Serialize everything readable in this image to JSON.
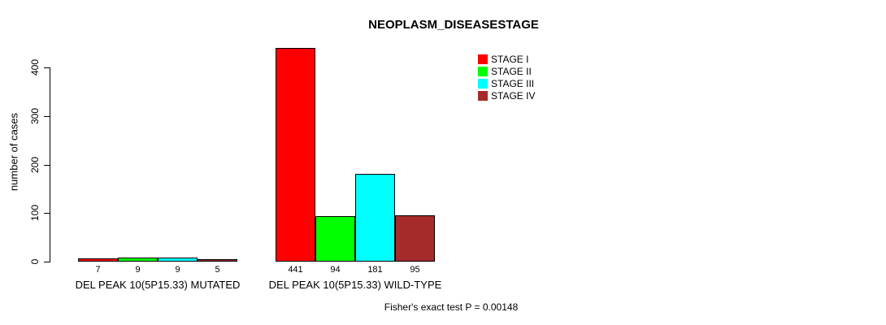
{
  "chart_data": {
    "type": "bar",
    "title": "NEOPLASM_DISEASESTAGE",
    "ylabel": "number of cases",
    "xlabel": "",
    "ylim": [
      0,
      441
    ],
    "yticks": [
      0,
      100,
      200,
      300,
      400
    ],
    "grid": false,
    "legend_position": "top-right",
    "categories": [
      "DEL PEAK 10(5P15.33) MUTATED",
      "DEL PEAK 10(5P15.33) WILD-TYPE"
    ],
    "series": [
      {
        "name": "STAGE I",
        "color": "#ff0000",
        "values": [
          7,
          441
        ]
      },
      {
        "name": "STAGE II",
        "color": "#00ff00",
        "values": [
          9,
          94
        ]
      },
      {
        "name": "STAGE III",
        "color": "#00ffff",
        "values": [
          9,
          181
        ]
      },
      {
        "name": "STAGE IV",
        "color": "#a52a2a",
        "values": [
          5,
          95
        ]
      }
    ],
    "bar_value_labels": [
      [
        "7",
        "9",
        "9",
        "5"
      ],
      [
        "441",
        "94",
        "181",
        "95"
      ]
    ],
    "annotation": "Fisher's exact test P = 0.00148"
  }
}
